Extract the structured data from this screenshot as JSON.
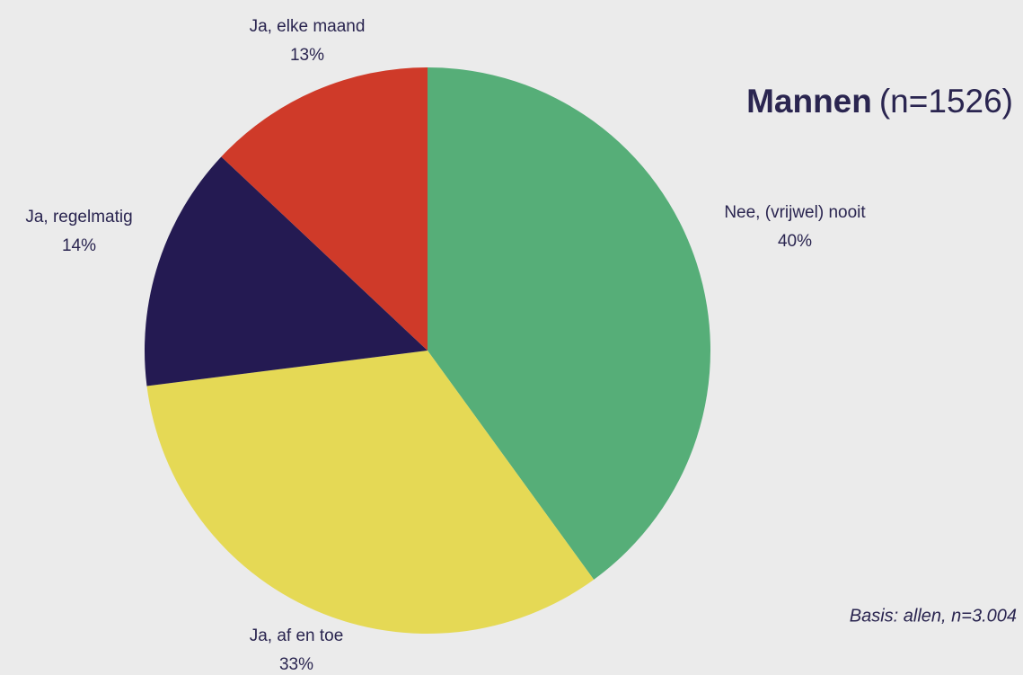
{
  "chart_data": {
    "type": "pie",
    "title": "Mannen",
    "subtitle": "(n=1526)",
    "note": "Basis: allen, n=3.004",
    "categories": [
      "Nee, (vrijwel) nooit",
      "Ja, af en toe",
      "Ja, regelmatig",
      "Ja, elke maand"
    ],
    "values": [
      40,
      33,
      14,
      13
    ],
    "value_labels": [
      "40%",
      "33%",
      "14%",
      "13%"
    ],
    "colors": [
      "#56ae78",
      "#e5d955",
      "#241a52",
      "#cf3a29"
    ],
    "start_angle": 0,
    "direction": "clockwise"
  }
}
